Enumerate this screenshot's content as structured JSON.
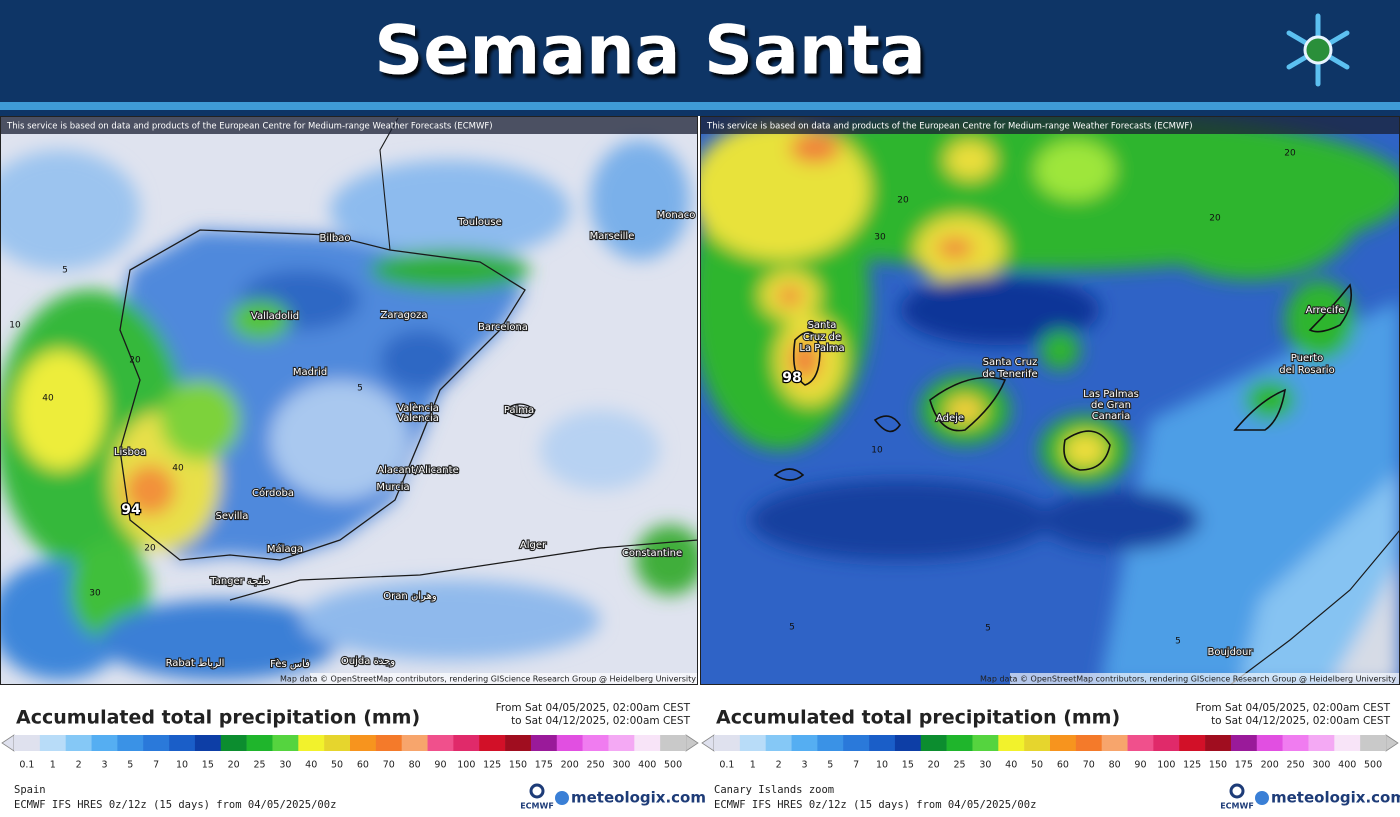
{
  "header": {
    "title": "Semana Santa"
  },
  "scale_colors": [
    "#dfe1ee",
    "#b8dcf8",
    "#85c8f6",
    "#55aef2",
    "#3a92e6",
    "#2a79da",
    "#1a5ec8",
    "#0d3ea6",
    "#0c8d2f",
    "#1fb52c",
    "#55d43f",
    "#f2f22c",
    "#e6d52d",
    "#f7941e",
    "#f47a2a",
    "#f7a56c",
    "#f0508c",
    "#e02a6a",
    "#d21028",
    "#a00d1f",
    "#9a1a9a",
    "#e14fe1",
    "#f07cf0",
    "#f4a9f4",
    "#f8e4f8",
    "#c9c9c9"
  ],
  "panels": [
    {
      "attribution": "This service is based on data and products of the European Centre for Medium-range Weather Forecasts (ECMWF)",
      "map_credit": "Map data © OpenStreetMap contributors, rendering GIScience Research Group @ Heidelberg University",
      "labels": [
        "Bilbao",
        "Toulouse",
        "Marseille",
        "Monaco",
        "Valladolid",
        "Zaragoza",
        "Barcelona",
        "Madrid",
        "València",
        "Valencia",
        "Palma",
        "Lisboa",
        "Córdoba",
        "Sevilla",
        "Alacant/Alicante",
        "Murcia",
        "Málaga",
        "Alger",
        "Constantine",
        "Tanger طنجة",
        "Oran وهران",
        "Rabat الرباط",
        "Oujda وجدة",
        "Fès فاس",
        "5",
        "10",
        "20",
        "40",
        "40",
        "20",
        "30",
        "5"
      ],
      "max_value": "94",
      "legend": {
        "title": "Accumulated total precipitation (mm)",
        "from": "From Sat 04/05/2025, 02:00am CEST",
        "to": "to Sat 04/12/2025, 02:00am CEST",
        "scale": [
          0.1,
          1,
          2,
          3,
          5,
          7,
          10,
          15,
          20,
          25,
          30,
          40,
          50,
          60,
          70,
          80,
          90,
          100,
          125,
          150,
          175,
          200,
          250,
          300,
          400,
          500
        ]
      },
      "footer": {
        "region": "Spain",
        "model": "ECMWF IFS HRES 0z/12z (15 days) from 04/05/2025/00z"
      },
      "logos": {
        "ecmwf": "ECMWF",
        "meteologix": "meteologix.com"
      }
    },
    {
      "attribution": "This service is based on data and products of the European Centre for Medium-range Weather Forecasts (ECMWF)",
      "map_credit": "Map data © OpenStreetMap contributors, rendering GIScience Research Group @ Heidelberg University",
      "labels": [
        "Santa",
        "Cruz de",
        "La Palma",
        "Santa Cruz",
        "de Tenerife",
        "Adeje",
        "Las Palmas",
        "de Gran",
        "Canaria",
        "Arrecife",
        "Puerto",
        "del Rosario",
        "Boujdour",
        "20",
        "30",
        "20",
        "20",
        "10",
        "5",
        "5",
        "5"
      ],
      "max_value": "98",
      "legend": {
        "title": "Accumulated total precipitation (mm)",
        "from": "From Sat 04/05/2025, 02:00am CEST",
        "to": "to Sat 04/12/2025, 02:00am CEST",
        "scale": [
          0.1,
          1,
          2,
          3,
          5,
          7,
          10,
          15,
          20,
          25,
          30,
          40,
          50,
          60,
          70,
          80,
          90,
          100,
          125,
          150,
          175,
          200,
          250,
          300,
          400,
          500
        ]
      },
      "footer": {
        "region": "Canary Islands zoom",
        "model": "ECMWF IFS HRES 0z/12z (15 days) from 04/05/2025/00z"
      },
      "logos": {
        "ecmwf": "ECMWF",
        "meteologix": "meteologix.com"
      }
    }
  ]
}
